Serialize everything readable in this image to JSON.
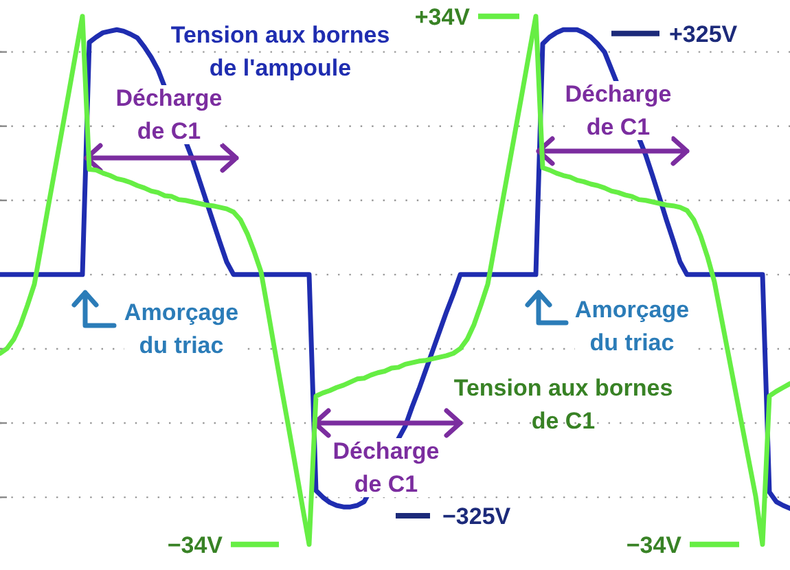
{
  "chart_data": [
    {
      "type": "line",
      "categories": [
        null,
        null,
        null,
        null,
        null,
        null,
        null,
        null,
        null,
        null,
        null,
        null,
        null,
        null,
        null,
        null,
        null,
        null,
        null,
        null,
        null,
        null,
        null,
        null,
        null,
        null,
        null,
        null,
        null,
        null,
        null,
        null,
        null,
        null,
        null,
        null,
        null,
        null,
        null,
        null,
        null,
        null,
        null,
        null,
        null,
        null,
        null,
        null,
        null,
        null,
        null,
        null,
        null,
        null,
        null,
        null,
        null,
        null,
        null,
        null,
        null,
        null,
        null,
        null,
        null,
        null,
        null,
        null,
        null,
        null,
        null,
        null,
        null,
        null,
        null,
        null,
        null,
        null,
        null,
        null,
        null,
        null,
        null,
        null,
        null,
        null,
        null,
        null,
        null,
        null,
        null,
        null,
        null,
        null,
        null,
        null,
        null,
        null,
        null,
        null,
        null,
        null,
        null,
        null,
        null,
        null,
        null,
        null,
        null,
        null,
        null,
        null,
        null,
        null,
        null,
        null
      ],
      "series": [
        {
          "name": "Tension aux bornes de l'ampoule",
          "color": "#1f2db0",
          "values": [
            0,
            0,
            0,
            0,
            0,
            0,
            0,
            0,
            0,
            0,
            0,
            0,
            0,
            313,
            320,
            326,
            328,
            330,
            328,
            324,
            319,
            307,
            293,
            276,
            null,
            null,
            null,
            null,
            156,
            128,
            100,
            72,
            44,
            17,
            0,
            0,
            0,
            0,
            0,
            0,
            0,
            0,
            0,
            0,
            0,
            0,
            -291,
            -300,
            -307,
            -311,
            -313,
            -313,
            -311,
            -306,
            null,
            null,
            null,
            null,
            null,
            -204,
            -178,
            -154,
            -128,
            -102,
            -76,
            -50,
            -26,
            0,
            0,
            0,
            0,
            0,
            0,
            0,
            0,
            0,
            0,
            0,
            0,
            311,
            320,
            326,
            330,
            330,
            330,
            326,
            320,
            311,
            300,
            null,
            null,
            null,
            null,
            null,
            161,
            133,
            104,
            74,
            46,
            17,
            0,
            0,
            0,
            0,
            0,
            0,
            0,
            0,
            0,
            0,
            0,
            0,
            -293,
            -306,
            -311,
            -315
          ]
        }
      ],
      "ylim": [
        -398,
        370
      ],
      "yticks": [
        {
          "value": -300,
          "label": null
        },
        {
          "value": -200,
          "label": null
        },
        {
          "value": -100,
          "label": null
        },
        {
          "value": 0,
          "label": null
        },
        {
          "value": 100,
          "label": null
        },
        {
          "value": 200,
          "label": null
        },
        {
          "value": 300,
          "label": null
        }
      ],
      "grid": "y",
      "tick_labels": false,
      "ref_lines": [
        {
          "axis": "y",
          "value": 325,
          "label": "+325V",
          "color": "#1c2a7a"
        },
        {
          "axis": "y",
          "value": -325,
          "label": "−325V",
          "color": "#1c2a7a"
        }
      ],
      "annotations": [
        "Décharge de C1",
        "Décharge de C1",
        "Amorçage du triac",
        "Amorçage du triac",
        "Décharge de C1"
      ]
    },
    {
      "type": "line",
      "categories": [
        null,
        null,
        null,
        null,
        null,
        null,
        null,
        null,
        null,
        null,
        null,
        null,
        null,
        null,
        null,
        null,
        null,
        null,
        null,
        null,
        null,
        null,
        null,
        null,
        null,
        null,
        null,
        null,
        null,
        null,
        null,
        null,
        null,
        null,
        null,
        null,
        null,
        null,
        null,
        null,
        null,
        null,
        null,
        null,
        null,
        null,
        null,
        null,
        null,
        null,
        null,
        null,
        null,
        null,
        null,
        null,
        null,
        null,
        null,
        null,
        null,
        null,
        null,
        null,
        null,
        null,
        null,
        null,
        null,
        null,
        null,
        null,
        null,
        null,
        null,
        null,
        null,
        null,
        null,
        null,
        null,
        null,
        null,
        null,
        null,
        null,
        null,
        null,
        null,
        null,
        null,
        null,
        null,
        null,
        null,
        null,
        null,
        null,
        null,
        null,
        null,
        null,
        null,
        null,
        null,
        null,
        null,
        null,
        null,
        null,
        null,
        null,
        null,
        null,
        null,
        null
      ],
      "series": [
        {
          "name": "Tension aux bornes de C1",
          "color": "#66ee44",
          "values": [
            -9.4,
            -8.8,
            -7.6,
            -5.7,
            -3.2,
            -0.5,
            4.4,
            9.4,
            14.3,
            19.2,
            24.1,
            29.1,
            34,
            14.3,
            14.2,
            13.8,
            13.5,
            13.1,
            12.9,
            12.6,
            12.2,
            11.9,
            11.5,
            11.3,
            10.9,
            10.8,
            10.4,
            10.3,
            10.1,
            9.9,
            9.7,
            9.6,
            9.4,
            9.2,
            8.8,
            7.8,
            6.0,
            3.7,
            1.1,
            -3.9,
            -9.0,
            -14.0,
            -18.9,
            -23.9,
            -29.0,
            -34,
            -14.9,
            -14.5,
            -14.2,
            -13.8,
            -13.5,
            -13.1,
            -12.7,
            -12.6,
            -12.2,
            -11.9,
            -11.7,
            -11.3,
            -11.2,
            -10.8,
            -10.6,
            -10.4,
            -10.3,
            -10.1,
            -9.9,
            -9.7,
            -9.4,
            -8.8,
            -7.6,
            -5.7,
            -3.2,
            -0.5,
            4.4,
            9.4,
            14.3,
            19.2,
            24.1,
            29.1,
            34,
            14.5,
            14.2,
            13.8,
            13.5,
            13.3,
            12.9,
            12.7,
            12.4,
            12.2,
            11.9,
            11.5,
            11.3,
            11.0,
            10.8,
            10.4,
            10.3,
            10.1,
            9.9,
            9.7,
            9.6,
            9.4,
            9.0,
            7.8,
            5.7,
            3.0,
            -0.2,
            -4.8,
            -9.4,
            -14.0,
            -18.6,
            -23.2,
            -27.8,
            -34,
            -14.9,
            -14.3,
            -13.8,
            -13.3
          ]
        }
      ],
      "ylim": [
        -37.3,
        36.1
      ],
      "ref_lines": [
        {
          "axis": "y",
          "value": 34,
          "label": "+34V",
          "color": "#66ee44"
        },
        {
          "axis": "y",
          "value": -34,
          "label": "−34V",
          "color": "#66ee44"
        },
        {
          "axis": "y",
          "value": -34,
          "label": "−34V",
          "color": "#66ee44"
        }
      ]
    }
  ]
}
